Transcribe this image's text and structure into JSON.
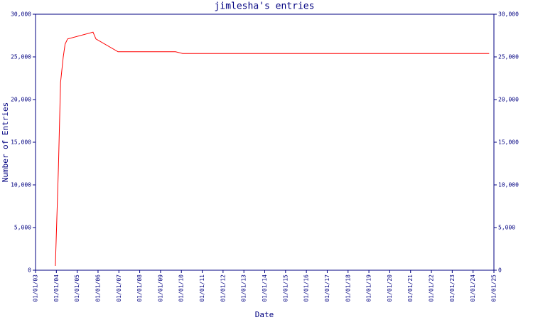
{
  "chart_data": {
    "type": "line",
    "title": "jimlesha's entries",
    "x_label": "Date",
    "y_label": "Number of Entries",
    "x": [
      2003.95,
      2004.1,
      2004.2,
      2004.33,
      2004.42,
      2004.54,
      2005.76,
      2005.9,
      2006.96,
      2009.72,
      2010.06,
      2024.77
    ],
    "values": [
      500,
      12000,
      22000,
      25000,
      26500,
      27100,
      27900,
      27100,
      25600,
      25600,
      25400,
      25400
    ],
    "color": "#ff0000",
    "axis_color": "#000080",
    "xlim": [
      2003,
      2025
    ],
    "xticks": [
      {
        "value": 2003,
        "label": "01/01/03"
      },
      {
        "value": 2004,
        "label": "01/01/04"
      },
      {
        "value": 2005,
        "label": "01/01/05"
      },
      {
        "value": 2006,
        "label": "01/01/06"
      },
      {
        "value": 2007,
        "label": "01/01/07"
      },
      {
        "value": 2008,
        "label": "01/01/08"
      },
      {
        "value": 2009,
        "label": "01/01/09"
      },
      {
        "value": 2010,
        "label": "01/01/10"
      },
      {
        "value": 2011,
        "label": "01/01/11"
      },
      {
        "value": 2012,
        "label": "01/01/12"
      },
      {
        "value": 2013,
        "label": "01/01/13"
      },
      {
        "value": 2014,
        "label": "01/01/14"
      },
      {
        "value": 2015,
        "label": "01/01/15"
      },
      {
        "value": 2016,
        "label": "01/01/16"
      },
      {
        "value": 2017,
        "label": "01/01/17"
      },
      {
        "value": 2018,
        "label": "01/01/18"
      },
      {
        "value": 2019,
        "label": "01/01/19"
      },
      {
        "value": 2020,
        "label": "01/01/20"
      },
      {
        "value": 2021,
        "label": "01/01/21"
      },
      {
        "value": 2022,
        "label": "01/01/22"
      },
      {
        "value": 2023,
        "label": "01/01/23"
      },
      {
        "value": 2024,
        "label": "01/01/24"
      },
      {
        "value": 2025,
        "label": "01/01/25"
      }
    ],
    "ylim": [
      0,
      30000
    ],
    "yticks": [
      0,
      {
        "value": 5000,
        "label": "5,000"
      },
      {
        "value": 10000,
        "label": "10,000"
      },
      {
        "value": 15000,
        "label": "15,000"
      },
      {
        "value": 20000,
        "label": "20,000"
      },
      {
        "value": 25000,
        "label": "25,000"
      },
      {
        "value": 30000,
        "label": "30,000"
      }
    ],
    "grid": false
  }
}
